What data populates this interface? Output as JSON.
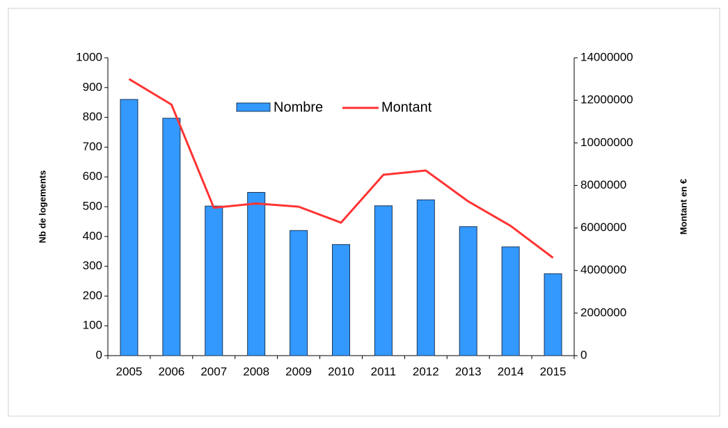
{
  "chart_data": {
    "type": "bar_line",
    "categories": [
      "2005",
      "2006",
      "2007",
      "2008",
      "2009",
      "2010",
      "2011",
      "2012",
      "2013",
      "2014",
      "2015"
    ],
    "series": [
      {
        "name": "Nombre",
        "type": "bar",
        "color": "#3399ff",
        "values": [
          860,
          797,
          502,
          548,
          420,
          373,
          503,
          523,
          433,
          365,
          275
        ]
      },
      {
        "name": "Montant",
        "type": "line",
        "axis": "y2",
        "color": "#ff3333",
        "values": [
          13000000,
          11800000,
          6950000,
          7150000,
          7000000,
          6250000,
          8500000,
          8700000,
          7250000,
          6100000,
          4600000
        ]
      }
    ],
    "ylabel": "Nb de logements",
    "y2label": "Montant en €",
    "ylim": [
      0,
      1000
    ],
    "yticks": [
      0,
      100,
      200,
      300,
      400,
      500,
      600,
      700,
      800,
      900,
      1000
    ],
    "y2lim": [
      0,
      14000000
    ],
    "y2ticks": [
      0,
      2000000,
      4000000,
      6000000,
      8000000,
      10000000,
      12000000,
      14000000
    ],
    "grid": false
  }
}
